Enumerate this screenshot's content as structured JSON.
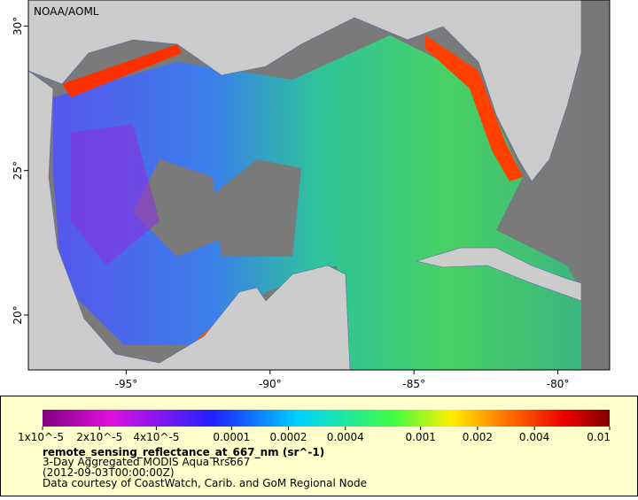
{
  "map": {
    "title": "NOAA/AOML",
    "xlim": [
      -98.4,
      -78.2
    ],
    "ylim": [
      18.1,
      30.9
    ],
    "xticks": [
      {
        "value": -95,
        "label": "-95°"
      },
      {
        "value": -90,
        "label": "-90°"
      },
      {
        "value": -85,
        "label": "-85°"
      },
      {
        "value": -80,
        "label": "-80°"
      }
    ],
    "yticks": [
      {
        "value": 20,
        "label": "20°"
      },
      {
        "value": 25,
        "label": "25°"
      },
      {
        "value": 30,
        "label": "30°"
      }
    ]
  },
  "colorbar": {
    "log_scale": true,
    "lim": [
      1e-05,
      0.01
    ],
    "ticks": [
      {
        "value": 1e-05,
        "label": "1x10^-5"
      },
      {
        "value": 2e-05,
        "label": "2x10^-5"
      },
      {
        "value": 4e-05,
        "label": "4x10^-5"
      },
      0.0001,
      0.0002,
      0.0004,
      0.001,
      0.002,
      0.004,
      0.01
    ],
    "variable": "remote_sensing_reflectance_at_667_nm (sr^-1)",
    "lines": [
      "3-Day Aggregated MODIS Aqua Rrs667",
      "(2012-09-03T00:00:00Z)",
      "Data courtesy of CoastWatch, Carib. and GoM Regional Node"
    ]
  }
}
